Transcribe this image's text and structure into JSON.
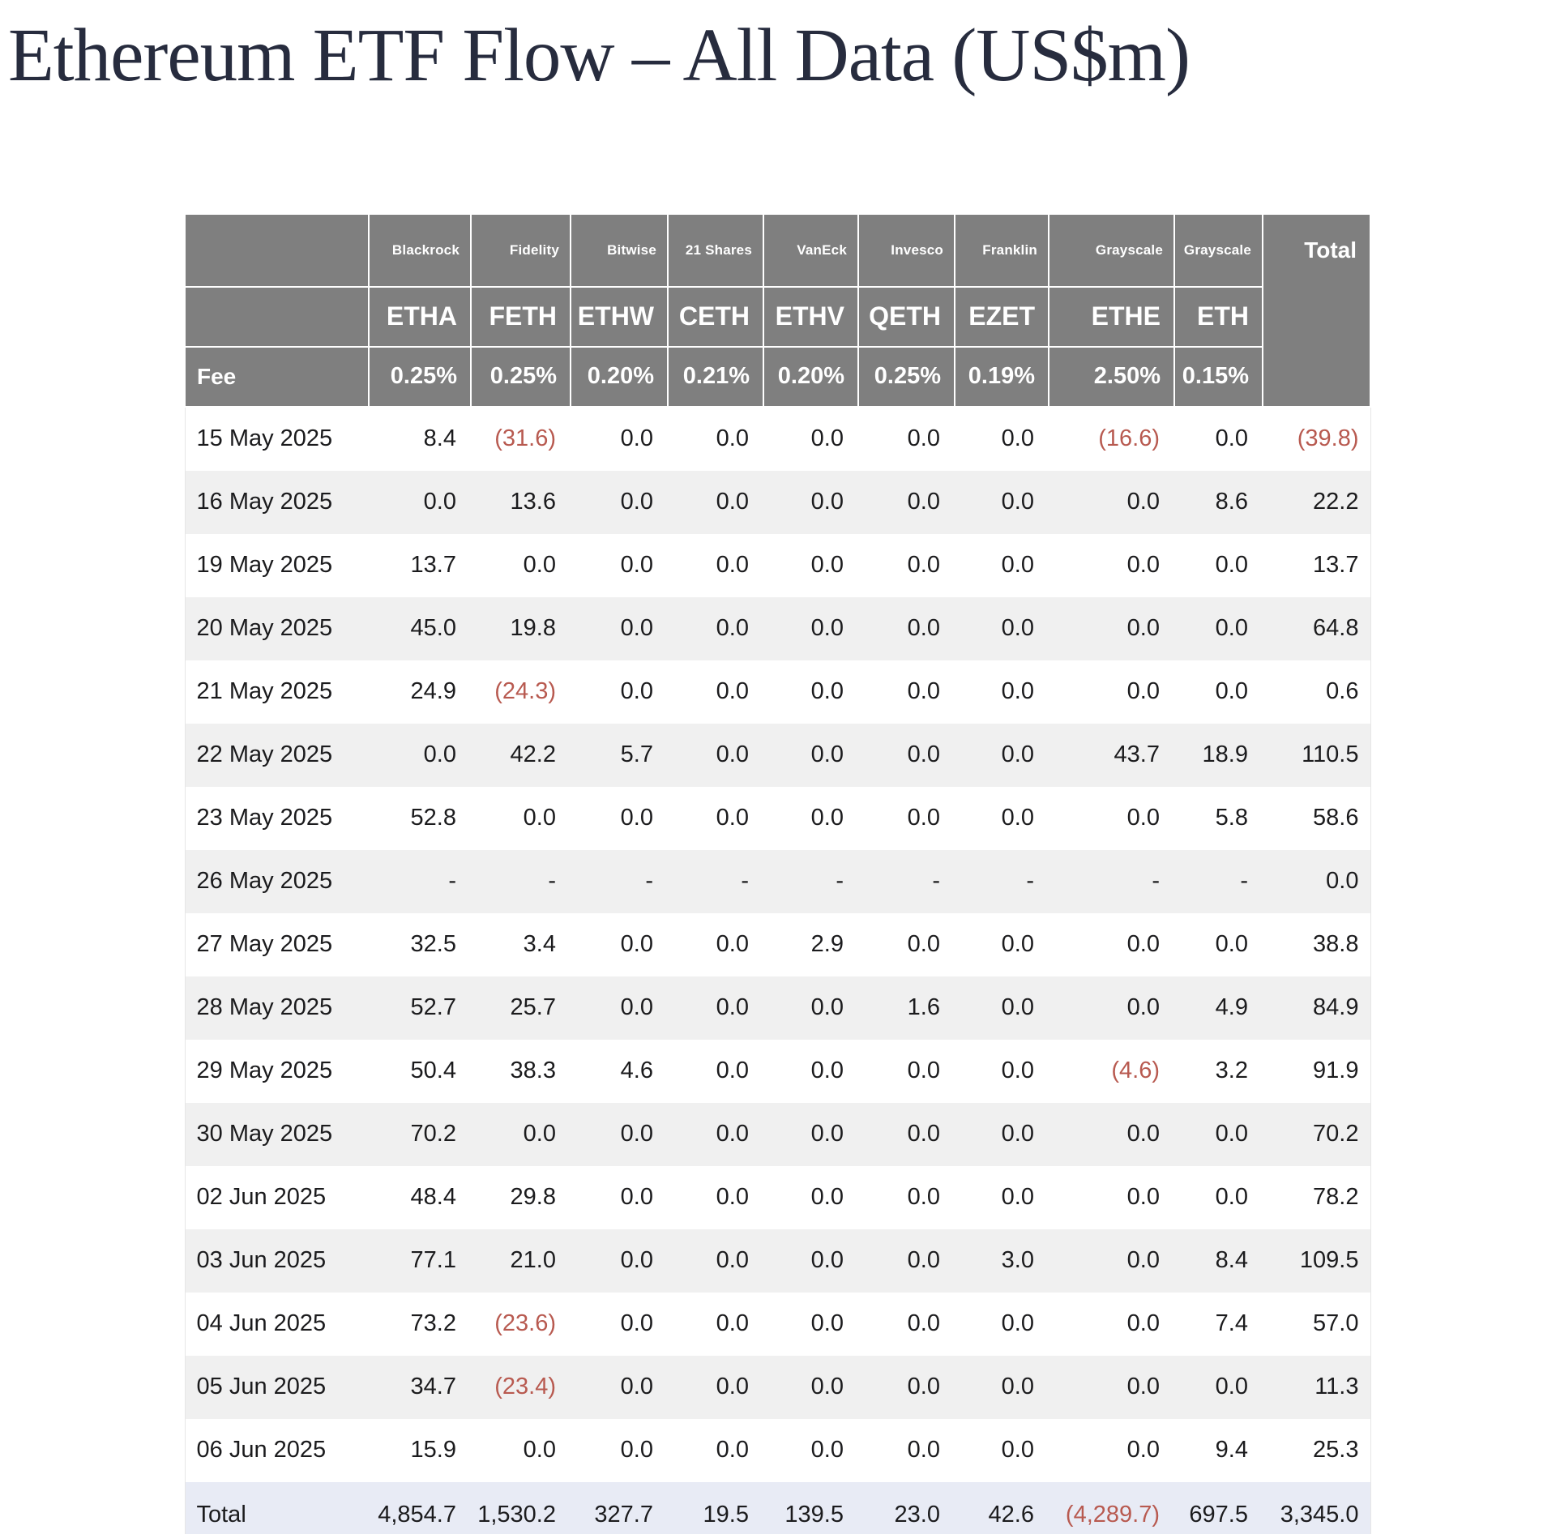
{
  "title": "Ethereum ETF Flow – All Data (US$m)",
  "colors": {
    "header_bg": "#7f7f7f",
    "header_text": "#ffffff",
    "body_text": "#1b1b1d",
    "negative_text": "#b85a50",
    "alt_row_bg": "#f0f0f0",
    "total_row_bg": "#e8ebf5",
    "title_text": "#272c3e"
  },
  "table": {
    "providers": [
      "Blackrock",
      "Fidelity",
      "Bitwise",
      "21 Shares",
      "VanEck",
      "Invesco",
      "Franklin",
      "Grayscale",
      "Grayscale"
    ],
    "tickers": [
      "ETHA",
      "FETH",
      "ETHW",
      "CETH",
      "ETHV",
      "QETH",
      "EZET",
      "ETHE",
      "ETH"
    ],
    "total_header": "Total",
    "fee_label": "Fee",
    "fees": [
      "0.25%",
      "0.25%",
      "0.20%",
      "0.21%",
      "0.20%",
      "0.25%",
      "0.19%",
      "2.50%",
      "0.15%"
    ],
    "rows": [
      {
        "date": "15 May 2025",
        "values": [
          "8.4",
          "(31.6)",
          "0.0",
          "0.0",
          "0.0",
          "0.0",
          "0.0",
          "(16.6)",
          "0.0"
        ],
        "total": "(39.8)"
      },
      {
        "date": "16 May 2025",
        "values": [
          "0.0",
          "13.6",
          "0.0",
          "0.0",
          "0.0",
          "0.0",
          "0.0",
          "0.0",
          "8.6"
        ],
        "total": "22.2"
      },
      {
        "date": "19 May 2025",
        "values": [
          "13.7",
          "0.0",
          "0.0",
          "0.0",
          "0.0",
          "0.0",
          "0.0",
          "0.0",
          "0.0"
        ],
        "total": "13.7"
      },
      {
        "date": "20 May 2025",
        "values": [
          "45.0",
          "19.8",
          "0.0",
          "0.0",
          "0.0",
          "0.0",
          "0.0",
          "0.0",
          "0.0"
        ],
        "total": "64.8"
      },
      {
        "date": "21 May 2025",
        "values": [
          "24.9",
          "(24.3)",
          "0.0",
          "0.0",
          "0.0",
          "0.0",
          "0.0",
          "0.0",
          "0.0"
        ],
        "total": "0.6"
      },
      {
        "date": "22 May 2025",
        "values": [
          "0.0",
          "42.2",
          "5.7",
          "0.0",
          "0.0",
          "0.0",
          "0.0",
          "43.7",
          "18.9"
        ],
        "total": "110.5"
      },
      {
        "date": "23 May 2025",
        "values": [
          "52.8",
          "0.0",
          "0.0",
          "0.0",
          "0.0",
          "0.0",
          "0.0",
          "0.0",
          "5.8"
        ],
        "total": "58.6"
      },
      {
        "date": "26 May 2025",
        "values": [
          "-",
          "-",
          "-",
          "-",
          "-",
          "-",
          "-",
          "-",
          "-"
        ],
        "total": "0.0"
      },
      {
        "date": "27 May 2025",
        "values": [
          "32.5",
          "3.4",
          "0.0",
          "0.0",
          "2.9",
          "0.0",
          "0.0",
          "0.0",
          "0.0"
        ],
        "total": "38.8"
      },
      {
        "date": "28 May 2025",
        "values": [
          "52.7",
          "25.7",
          "0.0",
          "0.0",
          "0.0",
          "1.6",
          "0.0",
          "0.0",
          "4.9"
        ],
        "total": "84.9"
      },
      {
        "date": "29 May 2025",
        "values": [
          "50.4",
          "38.3",
          "4.6",
          "0.0",
          "0.0",
          "0.0",
          "0.0",
          "(4.6)",
          "3.2"
        ],
        "total": "91.9"
      },
      {
        "date": "30 May 2025",
        "values": [
          "70.2",
          "0.0",
          "0.0",
          "0.0",
          "0.0",
          "0.0",
          "0.0",
          "0.0",
          "0.0"
        ],
        "total": "70.2"
      },
      {
        "date": "02 Jun 2025",
        "values": [
          "48.4",
          "29.8",
          "0.0",
          "0.0",
          "0.0",
          "0.0",
          "0.0",
          "0.0",
          "0.0"
        ],
        "total": "78.2"
      },
      {
        "date": "03 Jun 2025",
        "values": [
          "77.1",
          "21.0",
          "0.0",
          "0.0",
          "0.0",
          "0.0",
          "3.0",
          "0.0",
          "8.4"
        ],
        "total": "109.5"
      },
      {
        "date": "04 Jun 2025",
        "values": [
          "73.2",
          "(23.6)",
          "0.0",
          "0.0",
          "0.0",
          "0.0",
          "0.0",
          "0.0",
          "7.4"
        ],
        "total": "57.0"
      },
      {
        "date": "05 Jun 2025",
        "values": [
          "34.7",
          "(23.4)",
          "0.0",
          "0.0",
          "0.0",
          "0.0",
          "0.0",
          "0.0",
          "0.0"
        ],
        "total": "11.3"
      },
      {
        "date": "06 Jun 2025",
        "values": [
          "15.9",
          "0.0",
          "0.0",
          "0.0",
          "0.0",
          "0.0",
          "0.0",
          "0.0",
          "9.4"
        ],
        "total": "25.3"
      }
    ],
    "total_row": {
      "label": "Total",
      "values": [
        "4,854.7",
        "1,530.2",
        "327.7",
        "19.5",
        "139.5",
        "23.0",
        "42.6",
        "(4,289.7)",
        "697.5"
      ],
      "total": "3,345.0"
    }
  },
  "chart_data": {
    "type": "table",
    "title": "Ethereum ETF Flow – All Data (US$m)",
    "column_groups": [
      "Blackrock",
      "Fidelity",
      "Bitwise",
      "21 Shares",
      "VanEck",
      "Invesco",
      "Franklin",
      "Grayscale",
      "Grayscale"
    ],
    "columns": [
      "ETHA",
      "FETH",
      "ETHW",
      "CETH",
      "ETHV",
      "QETH",
      "EZET",
      "ETHE",
      "ETH",
      "Total"
    ],
    "fees_pct": [
      0.25,
      0.25,
      0.2,
      0.21,
      0.2,
      0.25,
      0.19,
      2.5,
      0.15
    ],
    "rows": [
      {
        "date": "15 May 2025",
        "values": [
          8.4,
          -31.6,
          0.0,
          0.0,
          0.0,
          0.0,
          0.0,
          -16.6,
          0.0
        ],
        "total": -39.8
      },
      {
        "date": "16 May 2025",
        "values": [
          0.0,
          13.6,
          0.0,
          0.0,
          0.0,
          0.0,
          0.0,
          0.0,
          8.6
        ],
        "total": 22.2
      },
      {
        "date": "19 May 2025",
        "values": [
          13.7,
          0.0,
          0.0,
          0.0,
          0.0,
          0.0,
          0.0,
          0.0,
          0.0
        ],
        "total": 13.7
      },
      {
        "date": "20 May 2025",
        "values": [
          45.0,
          19.8,
          0.0,
          0.0,
          0.0,
          0.0,
          0.0,
          0.0,
          0.0
        ],
        "total": 64.8
      },
      {
        "date": "21 May 2025",
        "values": [
          24.9,
          -24.3,
          0.0,
          0.0,
          0.0,
          0.0,
          0.0,
          0.0,
          0.0
        ],
        "total": 0.6
      },
      {
        "date": "22 May 2025",
        "values": [
          0.0,
          42.2,
          5.7,
          0.0,
          0.0,
          0.0,
          0.0,
          43.7,
          18.9
        ],
        "total": 110.5
      },
      {
        "date": "23 May 2025",
        "values": [
          52.8,
          0.0,
          0.0,
          0.0,
          0.0,
          0.0,
          0.0,
          0.0,
          5.8
        ],
        "total": 58.6
      },
      {
        "date": "26 May 2025",
        "values": [
          null,
          null,
          null,
          null,
          null,
          null,
          null,
          null,
          null
        ],
        "total": 0.0
      },
      {
        "date": "27 May 2025",
        "values": [
          32.5,
          3.4,
          0.0,
          0.0,
          2.9,
          0.0,
          0.0,
          0.0,
          0.0
        ],
        "total": 38.8
      },
      {
        "date": "28 May 2025",
        "values": [
          52.7,
          25.7,
          0.0,
          0.0,
          0.0,
          1.6,
          0.0,
          0.0,
          4.9
        ],
        "total": 84.9
      },
      {
        "date": "29 May 2025",
        "values": [
          50.4,
          38.3,
          4.6,
          0.0,
          0.0,
          0.0,
          0.0,
          -4.6,
          3.2
        ],
        "total": 91.9
      },
      {
        "date": "30 May 2025",
        "values": [
          70.2,
          0.0,
          0.0,
          0.0,
          0.0,
          0.0,
          0.0,
          0.0,
          0.0
        ],
        "total": 70.2
      },
      {
        "date": "02 Jun 2025",
        "values": [
          48.4,
          29.8,
          0.0,
          0.0,
          0.0,
          0.0,
          0.0,
          0.0,
          0.0
        ],
        "total": 78.2
      },
      {
        "date": "03 Jun 2025",
        "values": [
          77.1,
          21.0,
          0.0,
          0.0,
          0.0,
          0.0,
          3.0,
          0.0,
          8.4
        ],
        "total": 109.5
      },
      {
        "date": "04 Jun 2025",
        "values": [
          73.2,
          -23.6,
          0.0,
          0.0,
          0.0,
          0.0,
          0.0,
          0.0,
          7.4
        ],
        "total": 57.0
      },
      {
        "date": "05 Jun 2025",
        "values": [
          34.7,
          -23.4,
          0.0,
          0.0,
          0.0,
          0.0,
          0.0,
          0.0,
          0.0
        ],
        "total": 11.3
      },
      {
        "date": "06 Jun 2025",
        "values": [
          15.9,
          0.0,
          0.0,
          0.0,
          0.0,
          0.0,
          0.0,
          0.0,
          9.4
        ],
        "total": 25.3
      }
    ],
    "column_totals": [
      4854.7,
      1530.2,
      327.7,
      19.5,
      139.5,
      23.0,
      42.6,
      -4289.7,
      697.5
    ],
    "grand_total": 3345.0
  }
}
